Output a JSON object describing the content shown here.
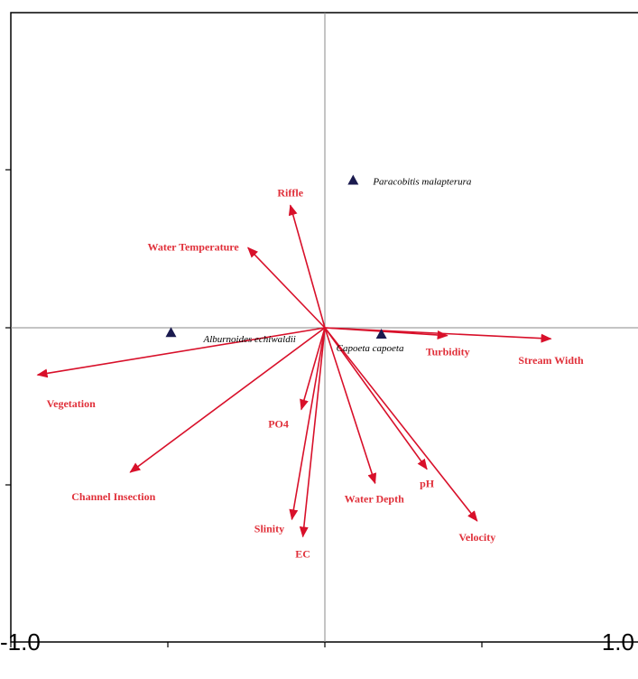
{
  "chart_data": {
    "type": "scatter",
    "title": "",
    "xlabel": "",
    "ylabel": "",
    "xlim": [
      -1.0,
      1.0
    ],
    "ylim": [
      -1.0,
      1.0
    ],
    "x_tick_labels": [
      "-1.0",
      "1.0"
    ],
    "reference_lines": "x=0 and y=0",
    "arrow_color": "#d8102a",
    "label_color": "#e0303a",
    "marker_color": "#1a1a4e",
    "environmental_vectors": [
      {
        "name": "Riffle",
        "x": -0.22,
        "y": 0.78
      },
      {
        "name": "Water Temperature",
        "x": -0.49,
        "y": 0.51
      },
      {
        "name": "Turbidity",
        "x": 0.78,
        "y": -0.05
      },
      {
        "name": "Stream Width",
        "x": 1.44,
        "y": -0.07
      },
      {
        "name": "Vegetation",
        "x": -1.83,
        "y": -0.3
      },
      {
        "name": "PO4",
        "x": -0.15,
        "y": -0.52
      },
      {
        "name": "Channel Insection",
        "x": -1.24,
        "y": -0.92
      },
      {
        "name": "Slinity",
        "x": -0.21,
        "y": -1.22
      },
      {
        "name": "EC",
        "x": -0.14,
        "y": -1.33
      },
      {
        "name": "Water Depth",
        "x": 0.32,
        "y": -0.99
      },
      {
        "name": "pH",
        "x": 0.65,
        "y": -0.9
      },
      {
        "name": "Velocity",
        "x": 0.97,
        "y": -1.23
      }
    ],
    "species": [
      {
        "name": "Paracobitis malapterura",
        "x": 0.18,
        "y": 0.94
      },
      {
        "name": "Alburnoides echiwaldii",
        "x": -0.98,
        "y": -0.03
      },
      {
        "name": "Capoeta capoeta",
        "x": 0.36,
        "y": -0.04
      }
    ]
  }
}
